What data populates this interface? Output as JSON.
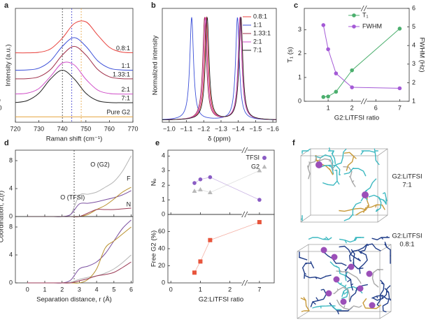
{
  "panel_labels": [
    "a",
    "b",
    "c",
    "d",
    "e",
    "f"
  ],
  "chart_data": [
    {
      "type": "line",
      "smooth": true,
      "xlabel": "Raman shift (cm⁻¹)",
      "ylabel": "Intensity (a.u.)",
      "xlim": [
        720,
        770
      ],
      "ylim": [
        0,
        10.5
      ],
      "xticks": [
        720,
        730,
        740,
        750,
        760,
        770
      ],
      "legend": "inline",
      "reference_lines": [
        {
          "value": 740,
          "color": "#444444"
        },
        {
          "value": 744,
          "color": "#3c3ccf"
        },
        {
          "value": 748,
          "color": "#e6a23c"
        }
      ],
      "x": [
        720,
        725,
        730,
        735,
        740,
        745,
        750,
        755,
        760,
        765,
        770
      ],
      "series": [
        {
          "name": "0.8:1",
          "color": "#e8413c",
          "values": [
            6.4,
            6.4,
            6.45,
            6.77,
            7.76,
            9.09,
            9.26,
            8.04,
            6.91,
            6.48,
            6.41
          ]
        },
        {
          "name": "1:1",
          "color": "#3b4fd8",
          "values": [
            4.8,
            4.82,
            4.99,
            5.67,
            7.0,
            7.8,
            7.0,
            5.67,
            4.99,
            4.82,
            4.8
          ]
        },
        {
          "name": "1.33:1",
          "color": "#a0304a",
          "values": [
            4.0,
            4.02,
            4.19,
            4.87,
            6.2,
            7.0,
            6.2,
            4.87,
            4.19,
            4.02,
            4.0
          ]
        },
        {
          "name": "2:1",
          "color": "#d04fc8",
          "values": [
            2.61,
            2.68,
            3.11,
            4.24,
            5.46,
            5.29,
            3.96,
            2.97,
            2.65,
            2.6,
            2.6
          ]
        },
        {
          "name": "7:1",
          "color": "#222222",
          "values": [
            1.82,
            1.99,
            2.67,
            4.0,
            4.8,
            4.0,
            2.67,
            1.99,
            1.82,
            1.8,
            1.8
          ]
        },
        {
          "name": "Pure G2",
          "color": "#e6a23c",
          "values": [
            0.5,
            0.5,
            0.5,
            0.5,
            0.5,
            0.5,
            0.5,
            0.5,
            0.5,
            0.5,
            0.5
          ]
        }
      ]
    },
    {
      "type": "spectrum",
      "xlabel": "δ (ppm)",
      "ylabel": "Normalized intensity",
      "xlim": [
        -0.96,
        -1.62
      ],
      "xticks": [
        {
          "value": -1.0,
          "label": "−1.0"
        },
        {
          "value": -1.1,
          "label": "−1.1"
        },
        {
          "value": -1.2,
          "label": "−1.2"
        },
        {
          "value": -1.3,
          "label": "−1.3"
        },
        {
          "value": -1.4,
          "label": "−1.4"
        },
        {
          "value": -1.5,
          "label": "−1.5"
        },
        {
          "value": -1.6,
          "label": "−1.6"
        }
      ],
      "legend": "upper right",
      "series": [
        {
          "name": "0.8:1",
          "color": "#e8413c",
          "peaks": [
            -1.215,
            -1.415
          ]
        },
        {
          "name": "1:1",
          "color": "#3b4fd8",
          "peaks": [
            -1.13,
            -1.395
          ]
        },
        {
          "name": "1.33:1",
          "color": "#a0304a",
          "peaks": [
            -1.205,
            -1.41
          ]
        },
        {
          "name": "2:1",
          "color": "#d04fc8",
          "peaks": [
            -1.21,
            -1.41
          ]
        },
        {
          "name": "7:1",
          "color": "#222222",
          "peaks": [
            -1.22,
            -1.415
          ]
        }
      ]
    },
    {
      "type": "line",
      "xlabel": "G2:LiTFSI ratio",
      "ylabel": "T₁ (s)",
      "y2label": "FWHM (Hz)",
      "broken_axis": true,
      "xlim": [
        0,
        7.4
      ],
      "xticks": [
        0,
        1,
        2,
        6,
        7
      ],
      "ylim": [
        0,
        3.9
      ],
      "yticks": [
        0,
        1,
        2,
        3
      ],
      "y2lim": [
        1,
        6
      ],
      "y2ticks": [
        1,
        2,
        3,
        4,
        5,
        6
      ],
      "legend": "upper center",
      "x": [
        0.8,
        1,
        1.33,
        2,
        7
      ],
      "series": [
        {
          "name": "T₁",
          "color": "#4caf6e",
          "marker": "circle",
          "values": [
            0.18,
            0.2,
            0.4,
            1.3,
            3.05
          ]
        },
        {
          "name": "FWHM",
          "color": "#a45ad6",
          "marker": "circle",
          "axis": "y2",
          "values": [
            5.1,
            3.8,
            2.5,
            1.75,
            1.7
          ]
        }
      ]
    },
    {
      "type": "line",
      "smooth": true,
      "ylabel": "Coordination, Z(r)",
      "xlim": [
        -0.7,
        6.1
      ],
      "xticks": [
        0,
        1,
        2,
        3,
        4,
        5,
        6
      ],
      "xticklabels": false,
      "ylim": [
        0,
        9.5
      ],
      "yticks": [
        0,
        4,
        8
      ],
      "legend": "inline",
      "reference_lines": [
        {
          "value": 2.7,
          "color": "#333333"
        }
      ],
      "x": [
        0,
        0.5,
        1,
        1.5,
        2,
        2.5,
        3,
        3.5,
        4,
        4.5,
        5,
        5.5,
        6
      ],
      "series": [
        {
          "name": "O (G2)",
          "color": "#b5b5b5",
          "values": [
            0,
            0,
            0,
            0,
            0,
            0.3,
            3.0,
            3.2,
            3.5,
            4.2,
            5.0,
            6.5,
            8.7
          ]
        },
        {
          "name": "O (TFSI)",
          "color": "#7a4fa0",
          "values": [
            0,
            0,
            0,
            0,
            0,
            0.3,
            1.8,
            1.9,
            2.1,
            2.4,
            2.7,
            3.1,
            3.7
          ]
        },
        {
          "name": "F",
          "color": "#b8902c",
          "values": [
            0,
            0,
            0,
            0,
            0,
            0,
            0,
            0.3,
            1.0,
            1.6,
            2.5,
            3.5,
            4.2
          ]
        },
        {
          "name": "N",
          "color": "#9b3a55",
          "values": [
            0,
            0,
            0,
            0,
            0,
            0,
            0,
            0.5,
            1.0,
            1.0,
            1.0,
            1.1,
            1.2
          ]
        }
      ]
    },
    {
      "type": "line",
      "smooth": true,
      "xlabel": "Separation distance, r (Å)",
      "xlim": [
        -0.7,
        6.1
      ],
      "xticks": [
        0,
        1,
        2,
        3,
        4,
        5,
        6
      ],
      "ylim": [
        0,
        9.5
      ],
      "yticks": [
        0,
        4,
        8
      ],
      "reference_lines": [
        {
          "value": 2.7,
          "color": "#333333"
        }
      ],
      "x": [
        0,
        0.5,
        1,
        1.5,
        2,
        2.5,
        3,
        3.5,
        4,
        4.5,
        5,
        5.5,
        6
      ],
      "series": [
        {
          "color": "#b5b5b5",
          "values": [
            0,
            0,
            0,
            0,
            0,
            0.1,
            0.5,
            0.8,
            1.0,
            1.4,
            2.0,
            2.9,
            4.0
          ]
        },
        {
          "color": "#7a4fa0",
          "values": [
            0,
            0,
            0,
            0,
            0,
            0.4,
            2.0,
            2.4,
            3.0,
            4.2,
            6.0,
            7.8,
            9.0
          ]
        },
        {
          "color": "#b8902c",
          "values": [
            0,
            0,
            0,
            0,
            0,
            0,
            0,
            0.5,
            2.0,
            5.0,
            6.0,
            7.0,
            8.0
          ]
        },
        {
          "color": "#9b3a55",
          "values": [
            0,
            0,
            0,
            0,
            0,
            0,
            0.3,
            0.6,
            1.0,
            1.2,
            1.5,
            2.2,
            3.0
          ]
        }
      ]
    },
    {
      "type": "scatter",
      "ylabel": "Nₒ",
      "broken_axis": true,
      "xlim": [
        -0.1,
        7.5
      ],
      "xticks": [
        0,
        1,
        2,
        7
      ],
      "xticklabels": false,
      "ylim": [
        0,
        4.4
      ],
      "yticks": [
        0,
        1,
        2,
        3,
        4
      ],
      "legend": "upper right",
      "x": [
        0.8,
        1,
        1.33,
        7
      ],
      "series": [
        {
          "name": "TFSI",
          "color": "#8a5cc4",
          "marker": "circle",
          "values": [
            2.15,
            2.4,
            2.55,
            1.0
          ]
        },
        {
          "name": "G2",
          "color": "#b8b8b8",
          "marker": "triangle",
          "values": [
            1.6,
            1.7,
            1.5,
            3.0
          ]
        }
      ]
    },
    {
      "type": "scatter",
      "xlabel": "G2:LiTFSI ratio",
      "ylabel": "Free G2 (%)",
      "broken_axis": true,
      "xlim": [
        -0.1,
        7.5
      ],
      "xticks": [
        0,
        1,
        2,
        7
      ],
      "ylim": [
        0,
        80
      ],
      "yticks": [
        0,
        20,
        40,
        60
      ],
      "x": [
        0.8,
        1,
        1.33,
        7
      ],
      "series": [
        {
          "color": "#e8553c",
          "marker": "square",
          "values": [
            12,
            25,
            50,
            71
          ]
        }
      ]
    }
  ],
  "structures": {
    "top": [
      "G2:LiTFSI",
      "7:1"
    ],
    "bottom": [
      "G2:LiTFSI",
      "0.8:1"
    ]
  }
}
